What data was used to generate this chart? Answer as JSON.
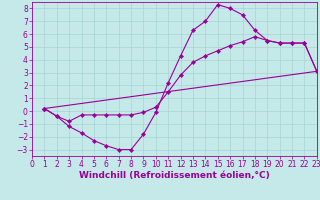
{
  "xlabel": "Windchill (Refroidissement éolien,°C)",
  "xlim": [
    0,
    23
  ],
  "ylim": [
    -3.5,
    8.5
  ],
  "xticks": [
    0,
    1,
    2,
    3,
    4,
    5,
    6,
    7,
    8,
    9,
    10,
    11,
    12,
    13,
    14,
    15,
    16,
    17,
    18,
    19,
    20,
    21,
    22,
    23
  ],
  "yticks": [
    -3,
    -2,
    -1,
    0,
    1,
    2,
    3,
    4,
    5,
    6,
    7,
    8
  ],
  "background_color": "#c5e8e8",
  "grid_color": "#a8d4d4",
  "line_color": "#990099",
  "marker": "D",
  "marker_size": 2.2,
  "line1_x": [
    1,
    2,
    3,
    4,
    5,
    6,
    7,
    8,
    9,
    10,
    11,
    12,
    13,
    14,
    15,
    16,
    17,
    18,
    19,
    20,
    21,
    22,
    23
  ],
  "line1_y": [
    0.2,
    -0.4,
    -1.2,
    -1.7,
    -2.3,
    -2.7,
    -3.0,
    -3.0,
    -1.8,
    -0.1,
    2.2,
    4.3,
    6.3,
    7.0,
    8.3,
    8.0,
    7.5,
    6.3,
    5.5,
    5.3,
    5.3,
    5.3,
    3.1
  ],
  "line2_x": [
    1,
    2,
    3,
    4,
    5,
    6,
    7,
    8,
    9,
    10,
    11,
    12,
    13,
    14,
    15,
    16,
    17,
    18,
    19,
    20,
    21,
    22,
    23
  ],
  "line2_y": [
    0.2,
    -0.4,
    -0.8,
    -0.3,
    -0.3,
    -0.3,
    -0.3,
    -0.3,
    -0.1,
    0.3,
    1.5,
    2.8,
    3.8,
    4.3,
    4.7,
    5.1,
    5.4,
    5.8,
    5.5,
    5.3,
    5.3,
    5.3,
    3.1
  ],
  "line3_x": [
    1,
    23
  ],
  "line3_y": [
    0.2,
    3.1
  ],
  "tick_fontsize": 5.5,
  "xlabel_fontsize": 6.5
}
